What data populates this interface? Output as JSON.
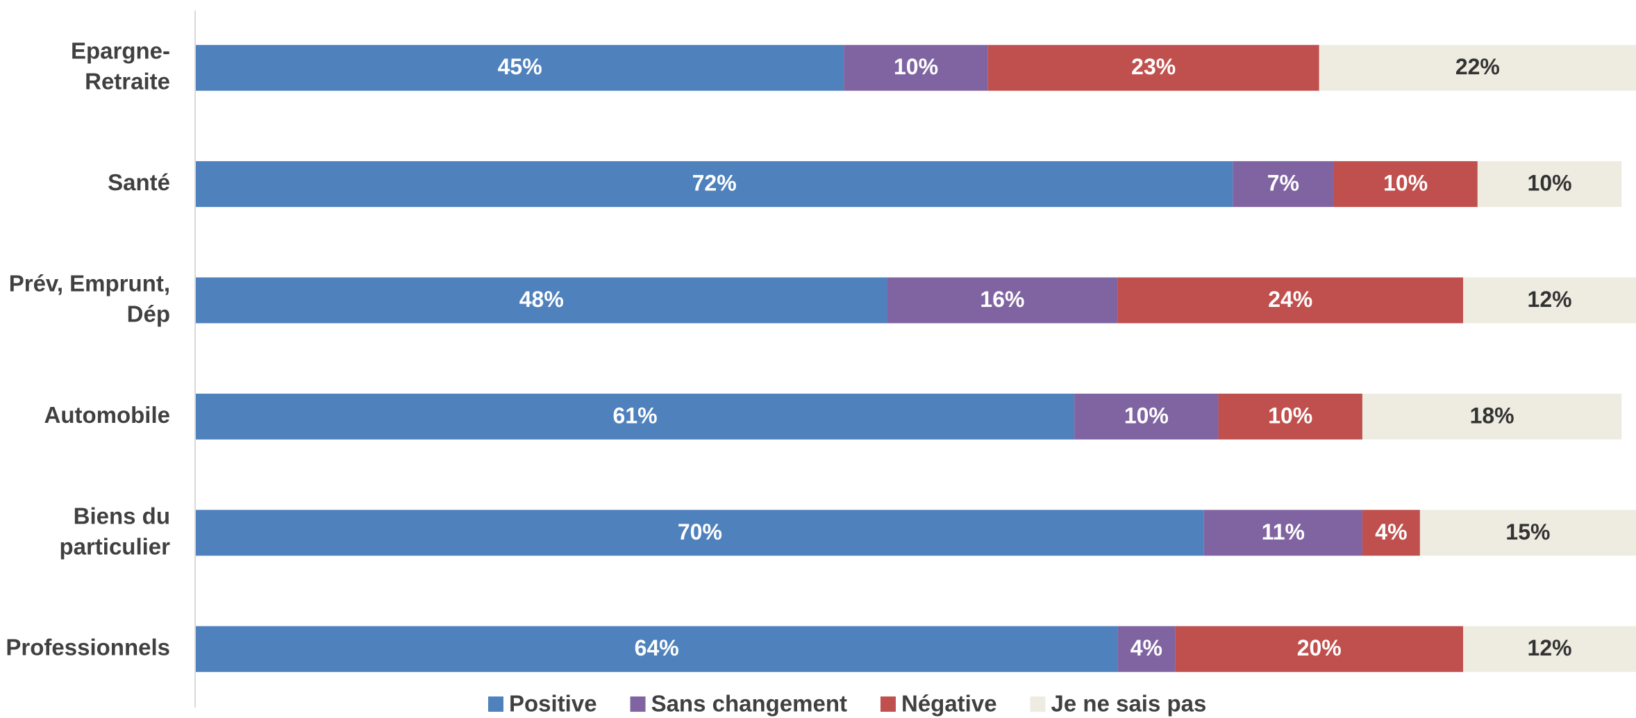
{
  "chart_data": {
    "type": "stacked-bar-horizontal",
    "categories": [
      "Epargne-\nRetraite",
      "Santé",
      "Prév, Emprunt,\nDép",
      "Automobile",
      "Biens du\nparticulier",
      "Professionnels"
    ],
    "xlim": [
      0,
      100
    ],
    "legend": "bottom",
    "series": [
      {
        "name": "Positive",
        "color": "#4f81bd",
        "label_color": "#ffffff",
        "values": [
          45,
          72,
          48,
          61,
          70,
          64
        ],
        "value_labels": [
          "45%",
          "72%",
          "48%",
          "61%",
          "70%",
          "64%"
        ]
      },
      {
        "name": "Sans changement",
        "color": "#8064a2",
        "label_color": "#ffffff",
        "values": [
          10,
          7,
          16,
          10,
          11,
          4
        ],
        "value_labels": [
          "10%",
          "7%",
          "16%",
          "10%",
          "11%",
          "4%"
        ]
      },
      {
        "name": "Négative",
        "color": "#c0504d",
        "label_color": "#ffffff",
        "values": [
          23,
          10,
          24,
          10,
          4,
          20
        ],
        "value_labels": [
          "23%",
          "10%",
          "24%",
          "10%",
          "4%",
          "20%"
        ]
      },
      {
        "name": "Je ne sais pas",
        "color": "#eeece1",
        "label_color": "#333333",
        "values": [
          22,
          10,
          12,
          18,
          15,
          12
        ],
        "value_labels": [
          "22%",
          "10%",
          "12%",
          "18%",
          "15%",
          "12%"
        ]
      }
    ]
  }
}
